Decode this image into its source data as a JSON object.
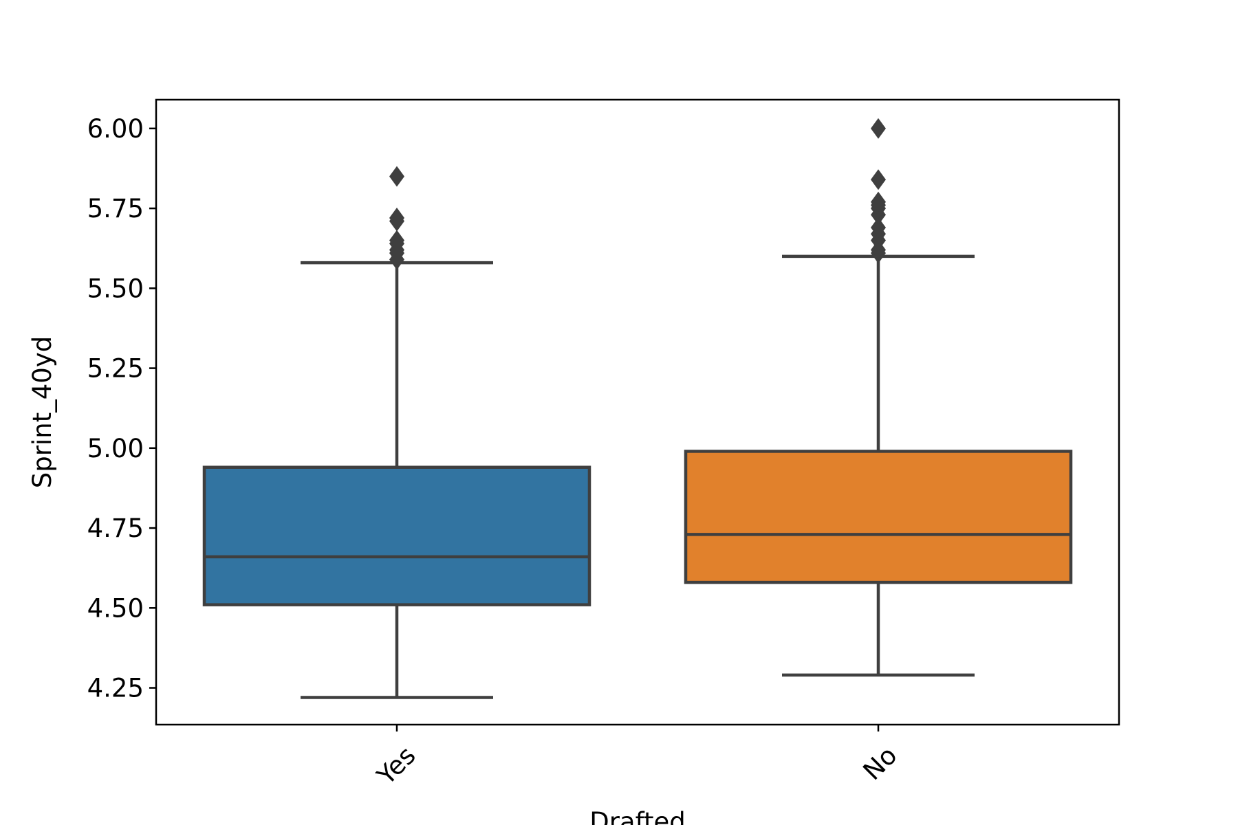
{
  "chart_data": {
    "type": "box",
    "xlabel": "Drafted",
    "ylabel": "Sprint_40yd",
    "ylim": [
      4.135,
      6.09
    ],
    "yticks": [
      "4.25",
      "4.50",
      "4.75",
      "5.00",
      "5.25",
      "5.50",
      "5.75",
      "6.00"
    ],
    "categories": [
      "Yes",
      "No"
    ],
    "xtick_rotation_deg": 45,
    "grid": false,
    "legend": "none",
    "box_edge_color": "#3f3f3f",
    "boxes": [
      {
        "category": "Yes",
        "color": "#3274a1",
        "whisker_low": 4.22,
        "q1": 4.51,
        "median": 4.66,
        "q3": 4.94,
        "whisker_high": 5.58,
        "outliers": [
          5.59,
          5.61,
          5.62,
          5.64,
          5.65,
          5.71,
          5.72,
          5.85
        ]
      },
      {
        "category": "No",
        "color": "#e1812c",
        "whisker_low": 4.29,
        "q1": 4.58,
        "median": 4.73,
        "q3": 4.99,
        "whisker_high": 5.6,
        "outliers": [
          5.61,
          5.62,
          5.65,
          5.67,
          5.69,
          5.73,
          5.75,
          5.76,
          5.77,
          5.84,
          6.0
        ]
      }
    ]
  }
}
